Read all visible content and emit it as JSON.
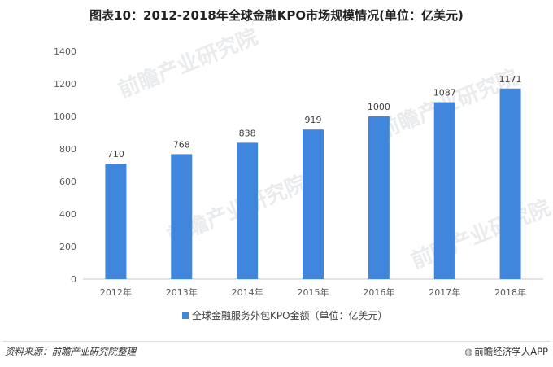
{
  "title": "图表10：2012-2018年全球金融KPO市场规模情况(单位：亿美元)",
  "source_note": "资料来源：前瞻产业研究院整理",
  "app_credit": "前瞻经济学人APP",
  "logo_icon": "qianzhan-logo-icon",
  "watermark_text": "前瞻产业研究院",
  "colors": {
    "bar": "#3f86dc",
    "axis": "#c8c8c8",
    "grid": "#e6e6e6"
  },
  "chart_data": {
    "type": "bar",
    "title": "图表10：2012-2018年全球金融KPO市场规模情况(单位：亿美元)",
    "categories": [
      "2012年",
      "2013年",
      "2014年",
      "2015年",
      "2016年",
      "2017年",
      "2018年"
    ],
    "series": [
      {
        "name": "全球金融服务外包KPO金额（单位：亿美元）",
        "values": [
          710,
          768,
          838,
          919,
          1000,
          1087,
          1171
        ]
      }
    ],
    "ylim": [
      0,
      1400
    ],
    "yticks": [
      0,
      200,
      400,
      600,
      800,
      1000,
      1200,
      1400
    ],
    "grid": false,
    "legend_position": "bottom",
    "data_labels": true
  }
}
